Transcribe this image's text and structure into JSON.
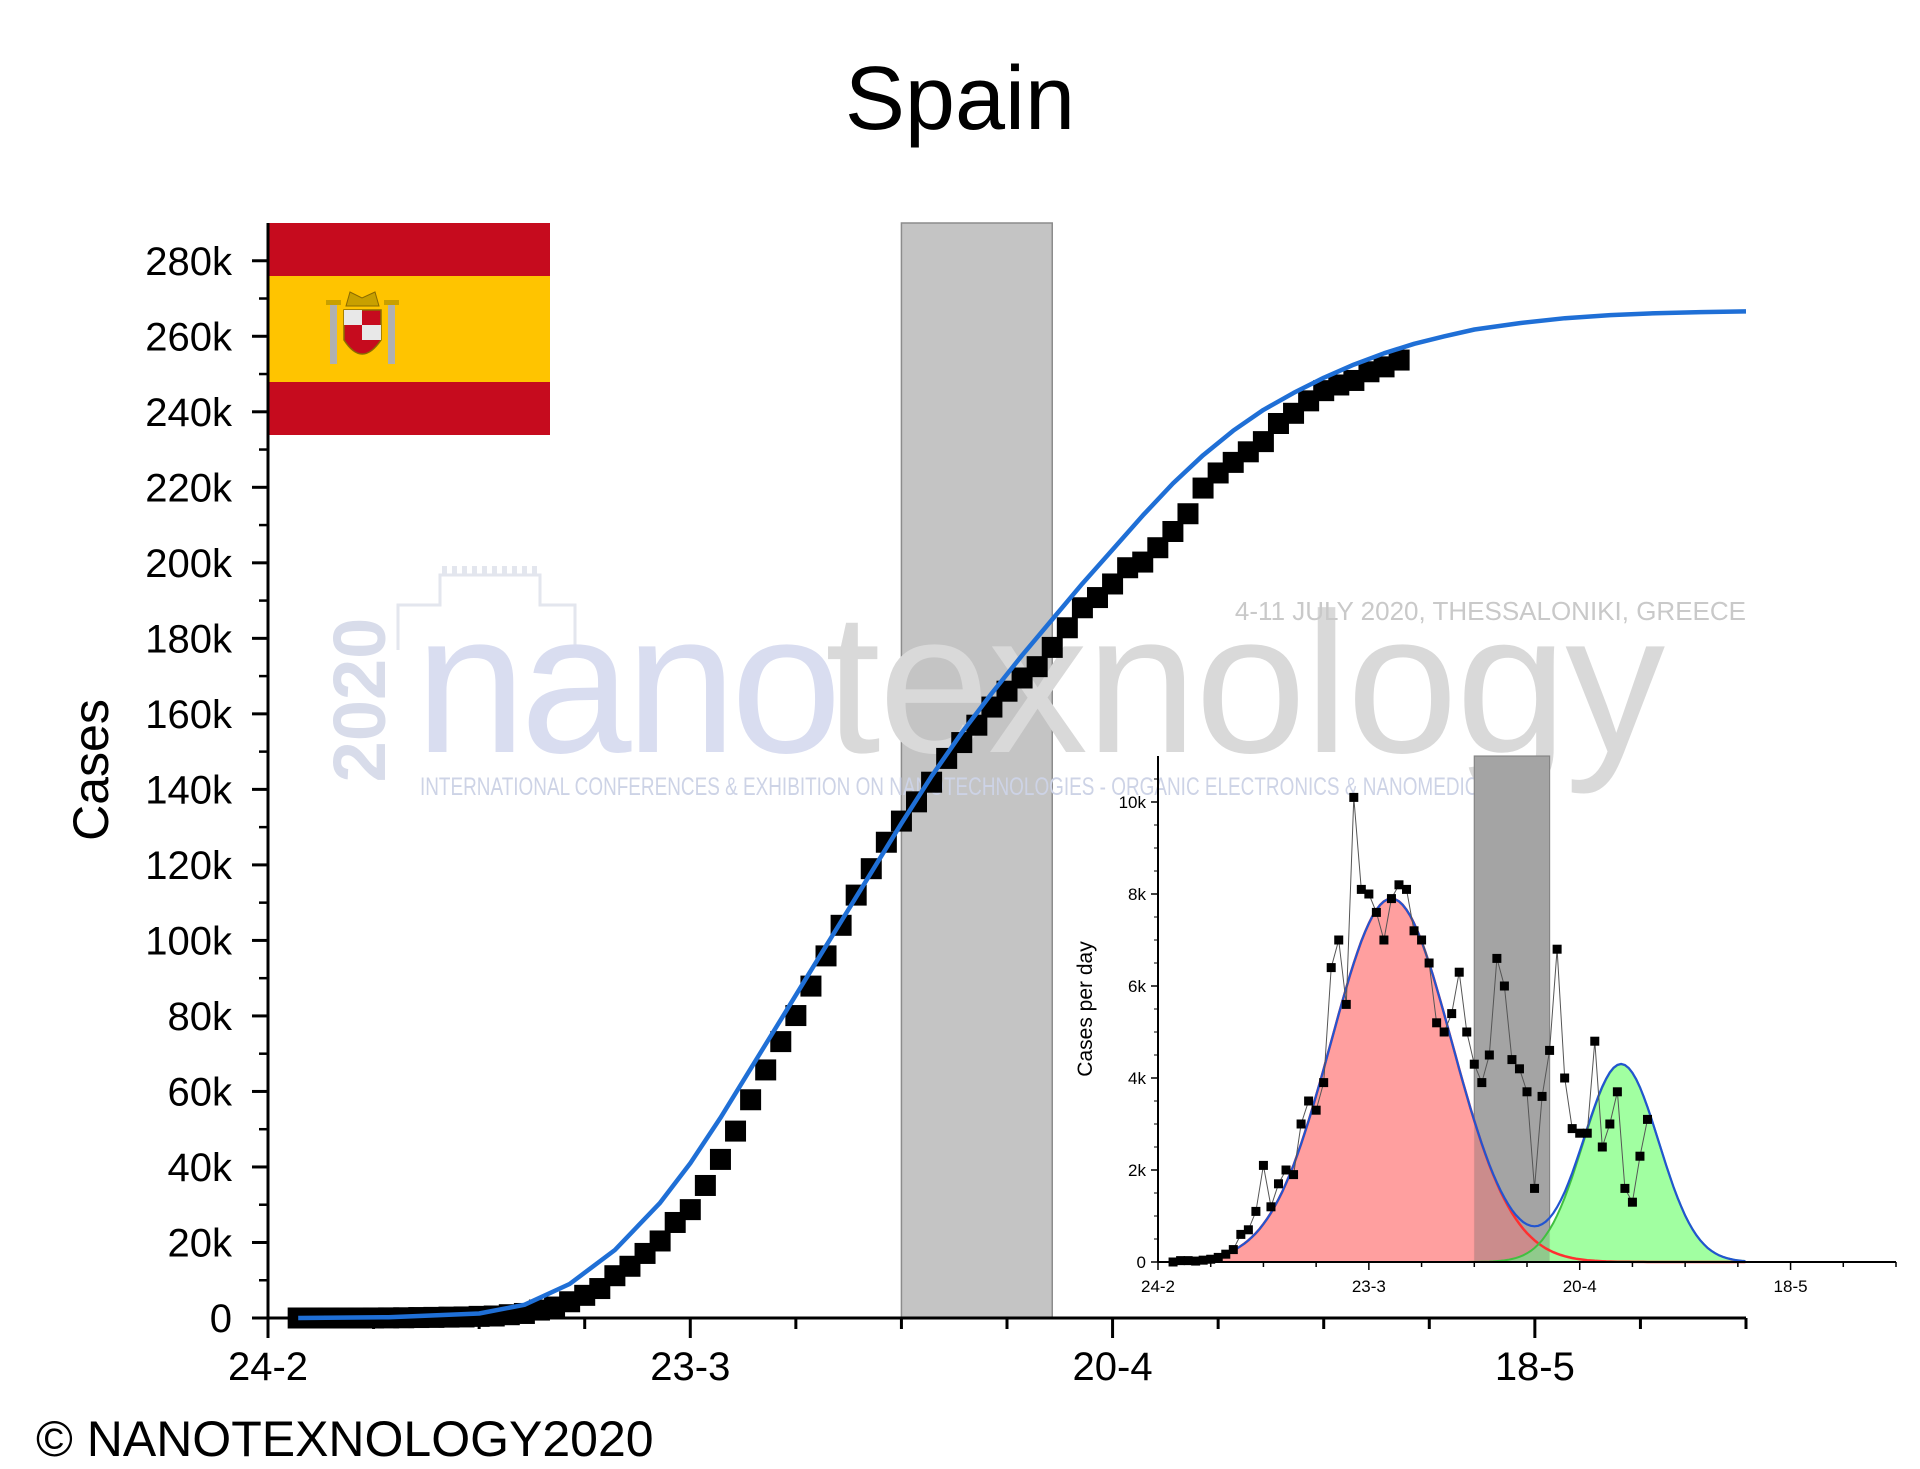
{
  "title": "Spain",
  "copyright": "© NANOTEXNOLOGY2020",
  "watermark": {
    "year": "2020",
    "word_left": "nano",
    "word_right": "texnology",
    "event": "4-11 JULY 2020, THESSALONIKI, GREECE",
    "tagline": "INTERNATIONAL CONFERENCES & EXHIBITION ON NANOTECHNOLOGIES - ORGANIC ELECTRONICS & NANOMEDICINE"
  },
  "flag": {
    "icon": "spain-flag-icon",
    "red": "#c60b1e",
    "yellow": "#ffc400"
  },
  "chart_data": [
    {
      "type": "scatter",
      "title": "Spain",
      "xlabel": "",
      "ylabel": "Cases",
      "x_tick_labels": [
        "24-2",
        "23-3",
        "20-4",
        "18-5"
      ],
      "y_tick_labels": [
        "0",
        "20k",
        "40k",
        "60k",
        "80k",
        "100k",
        "120k",
        "140k",
        "160k",
        "180k",
        "200k",
        "220k",
        "240k",
        "260k",
        "280k"
      ],
      "x_range_days": [
        0,
        98
      ],
      "ylim": [
        0,
        290000
      ],
      "shaded_band_days": [
        42,
        52
      ],
      "fit_color": "#1f6fd6",
      "marker_color": "#000000",
      "series": [
        {
          "kind": "points",
          "day_start": 2,
          "values": [
            0,
            1,
            2,
            2,
            2,
            6,
            30,
            60,
            120,
            160,
            230,
            280,
            430,
            530,
            870,
            1200,
            2100,
            2900,
            4300,
            6000,
            7800,
            11200,
            13700,
            17100,
            20400,
            25300,
            28700,
            35100,
            42000,
            49500,
            57800,
            65700,
            73200,
            80100,
            87900,
            95900,
            104000,
            112000,
            119000,
            126000,
            131600,
            136700,
            141900,
            148200,
            152400,
            157000,
            161800,
            166000,
            169500,
            172500,
            177600,
            182800,
            188100,
            190800,
            194400,
            198700,
            200200,
            204000,
            208300,
            213000,
            219800,
            223800,
            226600,
            229400,
            232100,
            236900,
            239600,
            242900,
            245600,
            247100,
            248300,
            250600,
            251900,
            253700
          ]
        },
        {
          "kind": "fit",
          "x_days": [
            2,
            8,
            14,
            17,
            20,
            23,
            26,
            28,
            30,
            32,
            34,
            36,
            38,
            40,
            42,
            44,
            46,
            48,
            50,
            52,
            54,
            56,
            58,
            60,
            62,
            64,
            66,
            68,
            70,
            72,
            74,
            76,
            78,
            80,
            83,
            86,
            89,
            92,
            95,
            98
          ],
          "values": [
            0,
            200,
            1200,
            3500,
            9000,
            18000,
            30500,
            41000,
            53000,
            66000,
            79000,
            92000,
            105000,
            118000,
            131000,
            143500,
            155000,
            165500,
            175500,
            185000,
            194500,
            203500,
            212500,
            221000,
            228500,
            235000,
            240500,
            245000,
            249000,
            252500,
            255500,
            258000,
            260000,
            261800,
            263500,
            264800,
            265600,
            266100,
            266400,
            266600
          ]
        }
      ]
    },
    {
      "type": "scatter",
      "xlabel": "",
      "ylabel": "Cases per day",
      "x_tick_labels": [
        "24-2",
        "23-3",
        "20-4",
        "18-5"
      ],
      "y_tick_labels": [
        "0",
        "2k",
        "4k",
        "6k",
        "8k",
        "10k"
      ],
      "x_range_days": [
        0,
        98
      ],
      "ylim": [
        0,
        11000
      ],
      "shaded_band_days": [
        42,
        52
      ],
      "series": [
        {
          "kind": "points",
          "color": "#000000",
          "day_start": 2,
          "values": [
            0,
            30,
            30,
            20,
            40,
            60,
            100,
            170,
            270,
            600,
            700,
            1100,
            2100,
            1200,
            1700,
            2000,
            1900,
            3000,
            3500,
            3300,
            3900,
            6400,
            7000,
            5600,
            10100,
            8100,
            8000,
            7600,
            7000,
            7900,
            8200,
            8100,
            7200,
            7000,
            6500,
            5200,
            5000,
            5400,
            6300,
            5000,
            4300,
            3900,
            4500,
            6600,
            6000,
            4400,
            4200,
            3700,
            1600,
            3600,
            4600,
            6800,
            4000,
            2900,
            2800,
            2800,
            4800,
            2500,
            3000,
            3700,
            1600,
            1300,
            2300,
            3100
          ]
        },
        {
          "kind": "fit-gaussian",
          "name": "",
          "color": "#ff3030",
          "fill": "#ff9a9a",
          "amplitude": 7900,
          "center_day": 31,
          "sigma": 8.0
        },
        {
          "kind": "fit-gaussian",
          "name": "",
          "color": "#40c040",
          "fill": "#9cff9c",
          "amplitude": 4300,
          "center_day": 61.5,
          "sigma": 5.0
        },
        {
          "kind": "fit-sum",
          "name": "",
          "color": "#2255d0"
        }
      ]
    }
  ]
}
